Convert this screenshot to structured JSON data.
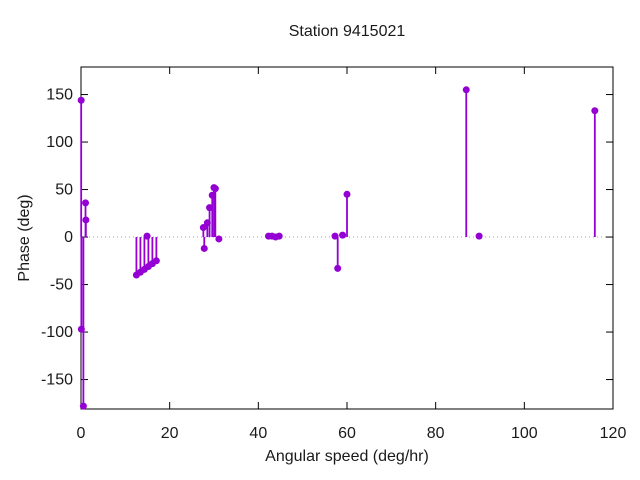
{
  "chart_data": {
    "type": "scatter",
    "style": "impulses+points",
    "title": "Station 9415021",
    "xlabel": "Angular speed (deg/hr)",
    "ylabel": "Phase (deg)",
    "xlim": [
      0,
      120
    ],
    "ylim": [
      -181,
      179
    ],
    "xticks": [
      0,
      20,
      40,
      60,
      80,
      100,
      120
    ],
    "yticks": [
      -150,
      -100,
      -50,
      0,
      50,
      100,
      150
    ],
    "grid": false,
    "zero_line_y": 0,
    "legend_position": "none",
    "point_color": "#9400d3",
    "points": [
      [
        0.04,
        144
      ],
      [
        0.08,
        -97
      ],
      [
        0.54,
        -178
      ],
      [
        1.02,
        36
      ],
      [
        1.1,
        18
      ],
      [
        12.5,
        -40
      ],
      [
        13.4,
        -37
      ],
      [
        14.3,
        -34
      ],
      [
        14.9,
        1
      ],
      [
        15.2,
        -31
      ],
      [
        16.1,
        -28
      ],
      [
        17.0,
        -25
      ],
      [
        27.6,
        10
      ],
      [
        27.8,
        -12
      ],
      [
        28.5,
        15
      ],
      [
        29.0,
        31
      ],
      [
        29.6,
        44
      ],
      [
        30.0,
        52
      ],
      [
        30.3,
        51
      ],
      [
        31.1,
        -2
      ],
      [
        42.3,
        1
      ],
      [
        43.1,
        1
      ],
      [
        43.9,
        0
      ],
      [
        44.7,
        1
      ],
      [
        57.3,
        1
      ],
      [
        57.9,
        -33
      ],
      [
        59.0,
        2
      ],
      [
        60.0,
        45
      ],
      [
        86.9,
        155
      ],
      [
        89.8,
        1
      ],
      [
        115.9,
        133
      ]
    ]
  },
  "colors": {
    "accent": "#9400d3",
    "axis": "#000000",
    "zero_line": "#a0a0a0",
    "text": "#1a1a1a",
    "background": "#ffffff"
  }
}
